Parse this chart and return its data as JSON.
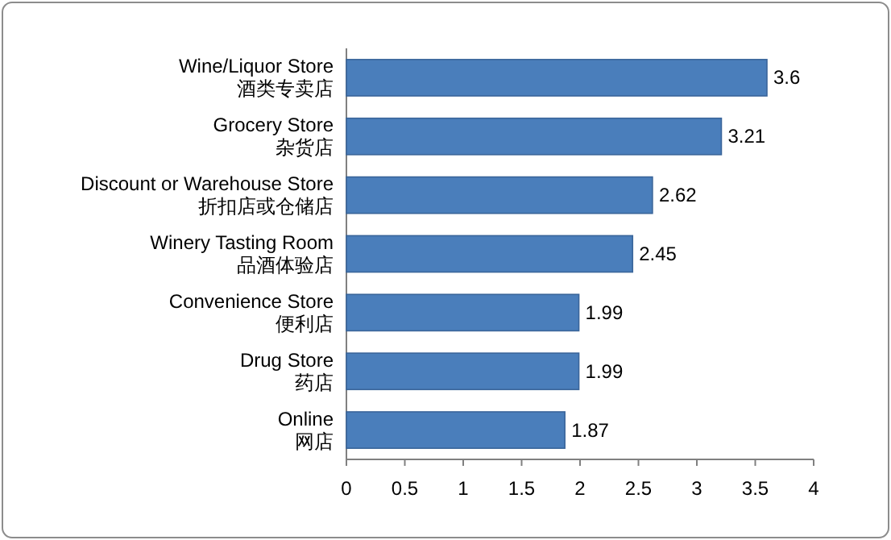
{
  "chart_data": {
    "type": "bar",
    "orientation": "horizontal",
    "categories": [
      "Wine/Liquor Store\n酒类专卖店",
      "Grocery Store\n杂货店",
      "Discount or Warehouse Store\n折扣店或仓储店",
      "Winery Tasting Room\n品酒体验店",
      "Convenience Store\n便利店",
      "Drug Store\n药店",
      "Online\n网店"
    ],
    "values": [
      3.6,
      3.21,
      2.62,
      2.45,
      1.99,
      1.99,
      1.87
    ],
    "color": "#4a7ebb",
    "xlim": [
      0,
      4
    ],
    "xticks": [
      0,
      0.5,
      1,
      1.5,
      2,
      2.5,
      3,
      3.5,
      4
    ],
    "data_labels": true,
    "grid": false
  }
}
